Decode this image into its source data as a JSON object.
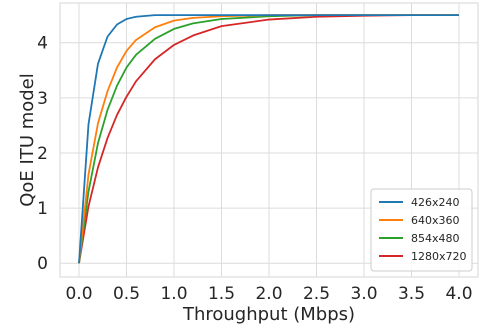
{
  "chart_data": {
    "type": "line",
    "title": "",
    "xlabel": "Throughput (Mbps)",
    "ylabel": "QoE ITU model",
    "xlim": [
      -0.2,
      4.2
    ],
    "ylim": [
      -0.25,
      4.72
    ],
    "x_ticks": [
      "0.0",
      "0.5",
      "1.0",
      "1.5",
      "2.0",
      "2.5",
      "3.0",
      "3.5",
      "4.0"
    ],
    "y_ticks": [
      "0",
      "1",
      "2",
      "3",
      "4"
    ],
    "grid": true,
    "legend_position": "bottom-right",
    "x": [
      0,
      0.1,
      0.2,
      0.3,
      0.4,
      0.5,
      0.6,
      0.8,
      1.0,
      1.2,
      1.5,
      2.0,
      2.5,
      3.0,
      3.5,
      4.0
    ],
    "series": [
      {
        "name": "426x240",
        "color": "#1f77b4",
        "values": [
          0,
          2.52,
          3.62,
          4.11,
          4.33,
          4.43,
          4.47,
          4.5,
          4.5,
          4.5,
          4.5,
          4.5,
          4.5,
          4.5,
          4.5,
          4.5
        ]
      },
      {
        "name": "640x360",
        "color": "#ff7f0e",
        "values": [
          0,
          1.61,
          2.54,
          3.12,
          3.55,
          3.85,
          4.05,
          4.28,
          4.4,
          4.45,
          4.48,
          4.5,
          4.5,
          4.5,
          4.5,
          4.5
        ]
      },
      {
        "name": "854x480",
        "color": "#2ca02c",
        "values": [
          0,
          1.3,
          2.18,
          2.78,
          3.22,
          3.55,
          3.78,
          4.07,
          4.25,
          4.35,
          4.43,
          4.48,
          4.5,
          4.5,
          4.5,
          4.5
        ]
      },
      {
        "name": "1280x720",
        "color": "#d62728",
        "values": [
          0,
          1.03,
          1.74,
          2.27,
          2.69,
          3.02,
          3.3,
          3.7,
          3.96,
          4.13,
          4.3,
          4.42,
          4.47,
          4.49,
          4.5,
          4.5
        ]
      }
    ]
  }
}
